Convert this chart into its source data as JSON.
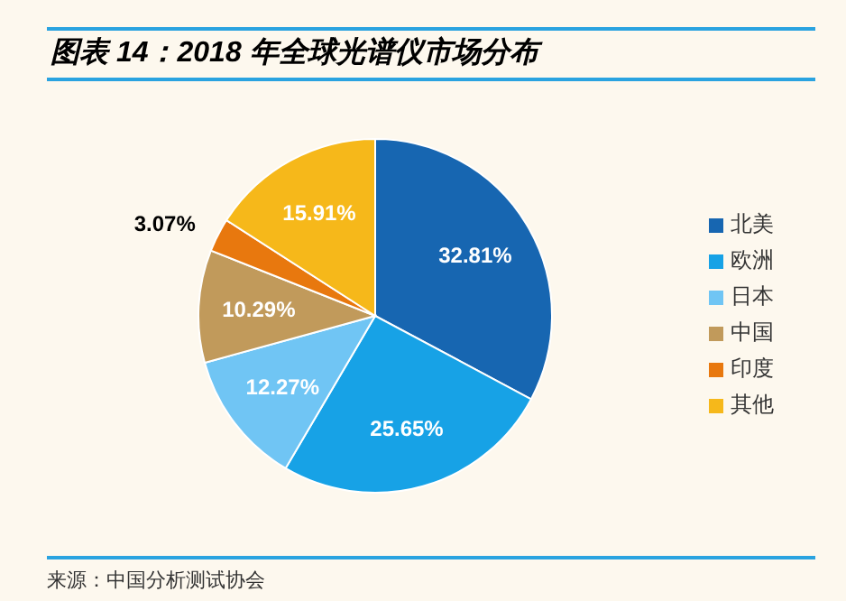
{
  "chart_data": {
    "type": "pie",
    "title": "图表 14：2018 年全球光谱仪市场分布",
    "categories": [
      "北美",
      "欧洲",
      "日本",
      "中国",
      "印度",
      "其他"
    ],
    "values": [
      32.81,
      25.65,
      12.27,
      10.29,
      3.07,
      15.91
    ],
    "value_labels": [
      "32.81%",
      "25.65%",
      "12.27%",
      "10.29%",
      "3.07%",
      "15.91%"
    ],
    "colors": [
      "#1766b1",
      "#17a2e6",
      "#70c5f4",
      "#c19a5b",
      "#e8780e",
      "#f6b81a"
    ],
    "legend": "right",
    "annotations": [
      "来源：中国分析测试协会"
    ]
  }
}
